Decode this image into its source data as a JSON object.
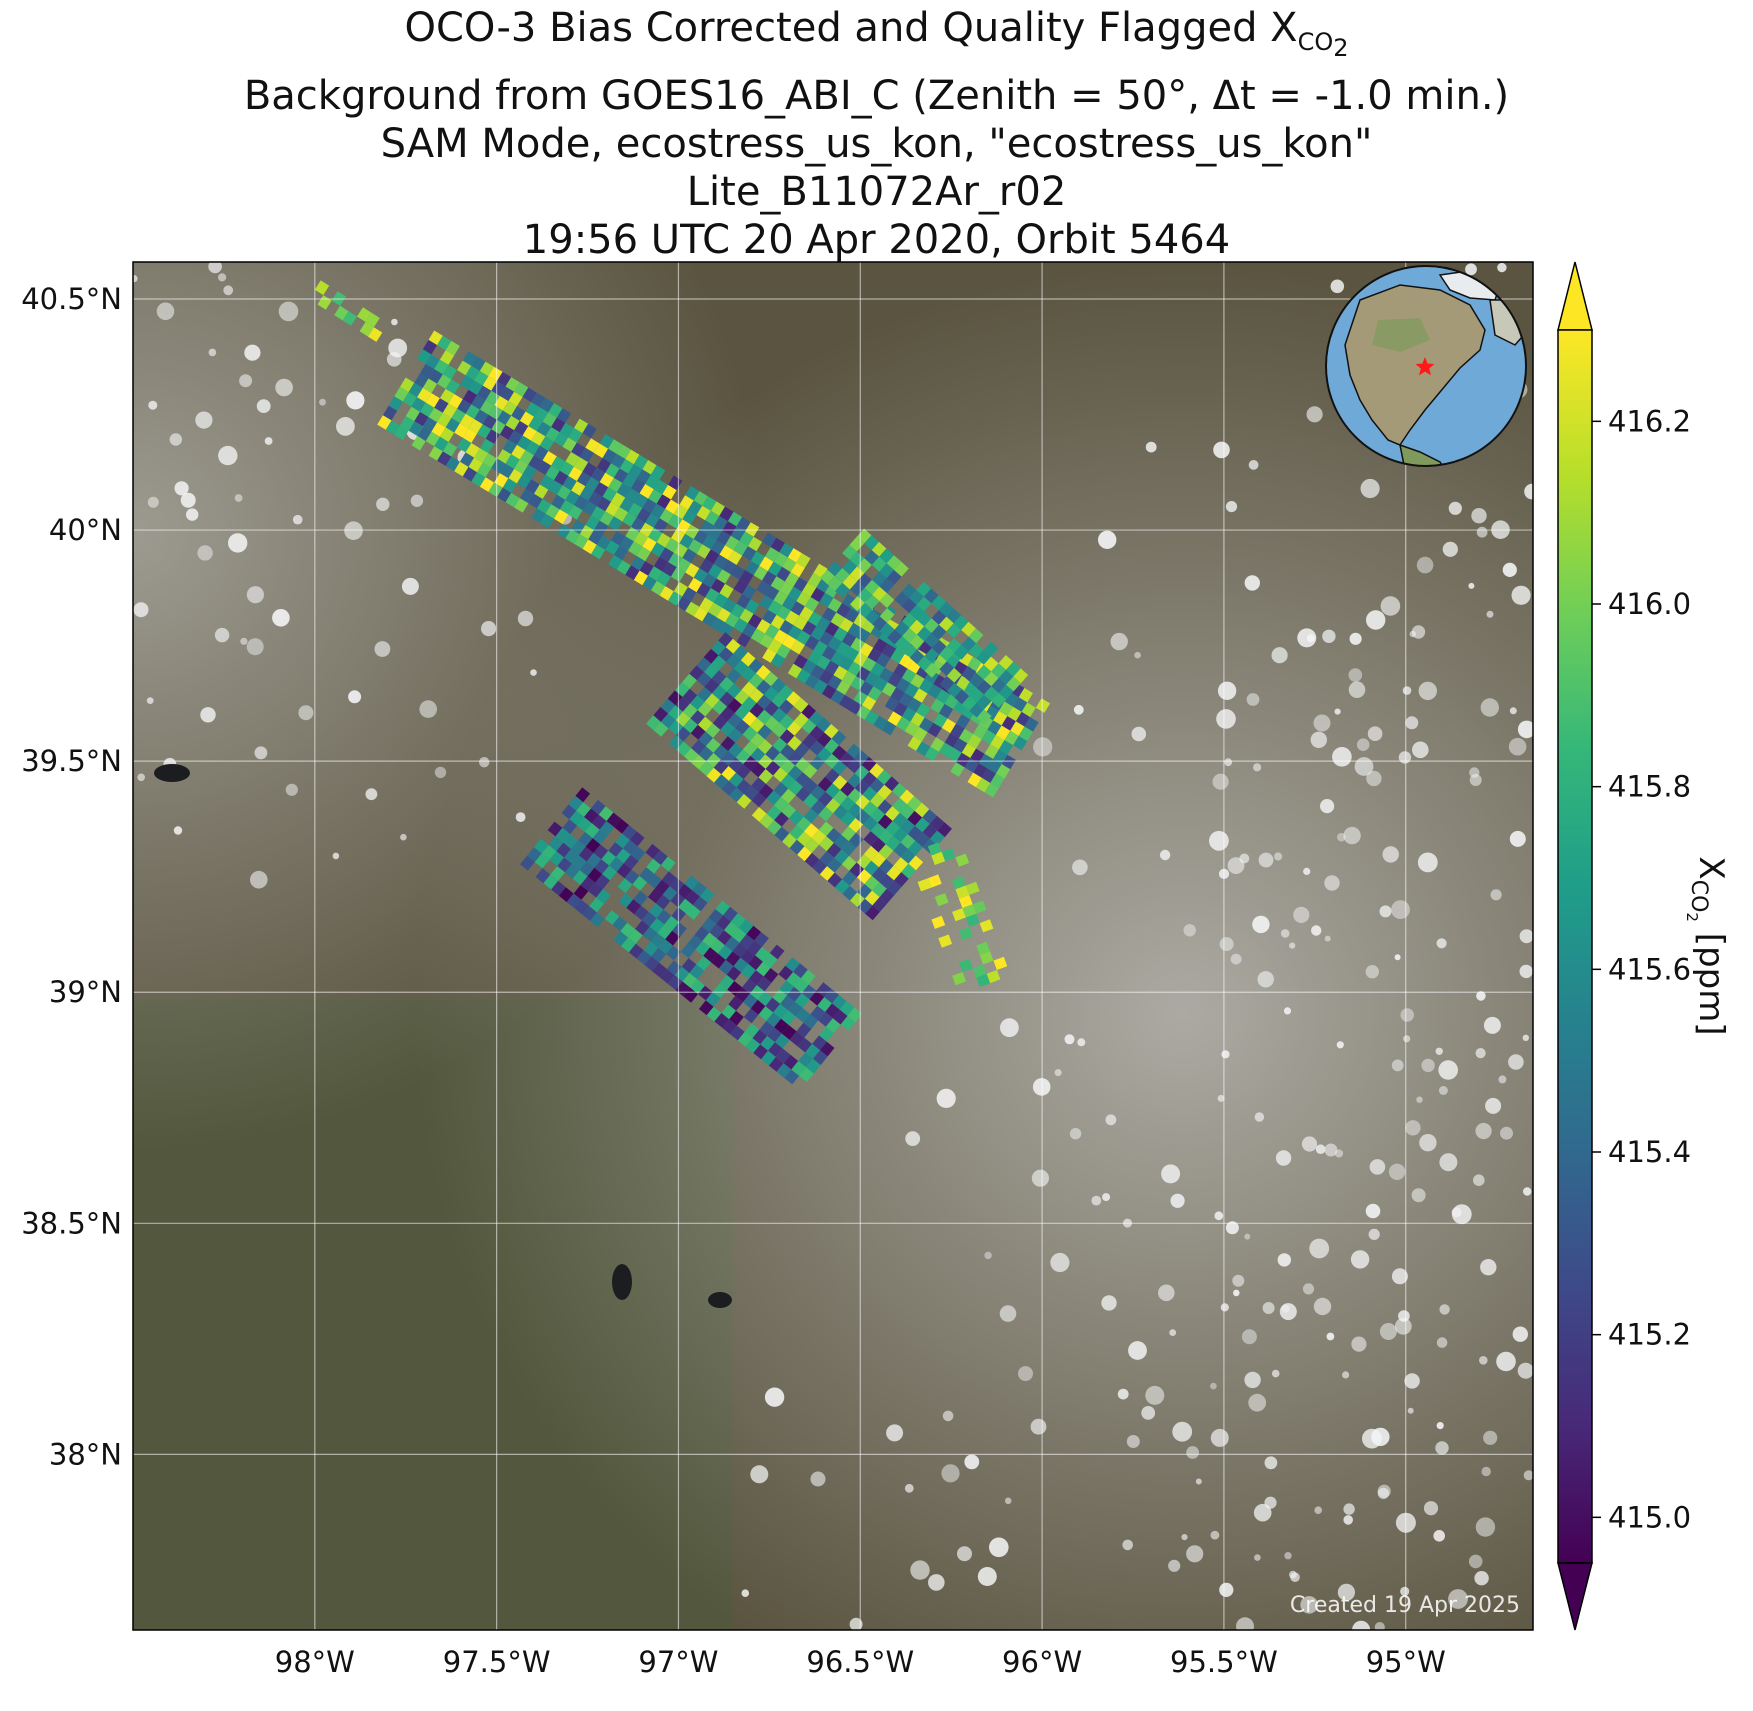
{
  "title": {
    "line1_main": "OCO-3 Bias Corrected and Quality Flagged X",
    "line1_sub": "CO",
    "line1_subsub": "2",
    "line2": "Background from GOES16_ABI_C (Zenith = 50°, Δt = -1.0 min.)",
    "line3": "SAM Mode, ecostress_us_kon, \"ecostress_us_kon\"",
    "line4": "Lite_B11072Ar_r02",
    "line5": "19:56 UTC 20 Apr 2020, Orbit 5464"
  },
  "map": {
    "lon_ticks": [
      "98°W",
      "97.5°W",
      "97°W",
      "96.5°W",
      "96°W",
      "95.5°W",
      "95°W"
    ],
    "lat_ticks": [
      "40.5°N",
      "40°N",
      "39.5°N",
      "39°N",
      "38.5°N",
      "38°N"
    ],
    "lon_values": [
      -98.0,
      -97.5,
      -97.0,
      -96.5,
      -96.0,
      -95.5,
      -95.0
    ],
    "lat_values": [
      40.5,
      40.0,
      39.5,
      39.0,
      38.5,
      38.0
    ],
    "extent": {
      "lon_min": -98.5,
      "lon_max": -94.65,
      "lat_min": 37.62,
      "lat_max": 40.58
    },
    "site_marker": "red-star",
    "inset": "globe-north-america",
    "credit": "Created 19 Apr 2025",
    "background_colors": {
      "land": "#5a5440",
      "cloud": "#e6e8ea",
      "water": "#1c1d20"
    }
  },
  "colorbar": {
    "label_main": "X",
    "label_sub": "CO",
    "label_subsub": "2",
    "label_units": " [ppm]",
    "ticks": [
      "416.2",
      "416.0",
      "415.8",
      "415.6",
      "415.4",
      "415.2",
      "415.0"
    ],
    "tick_values": [
      416.2,
      416.0,
      415.8,
      415.6,
      415.4,
      415.2,
      415.0
    ],
    "vmin": 414.95,
    "vmax": 416.3,
    "extend": "both",
    "colormap": [
      "#440154",
      "#482878",
      "#3e4989",
      "#31688e",
      "#26828e",
      "#1f9e89",
      "#35b779",
      "#6ece58",
      "#b5de2b",
      "#fde725"
    ]
  }
}
